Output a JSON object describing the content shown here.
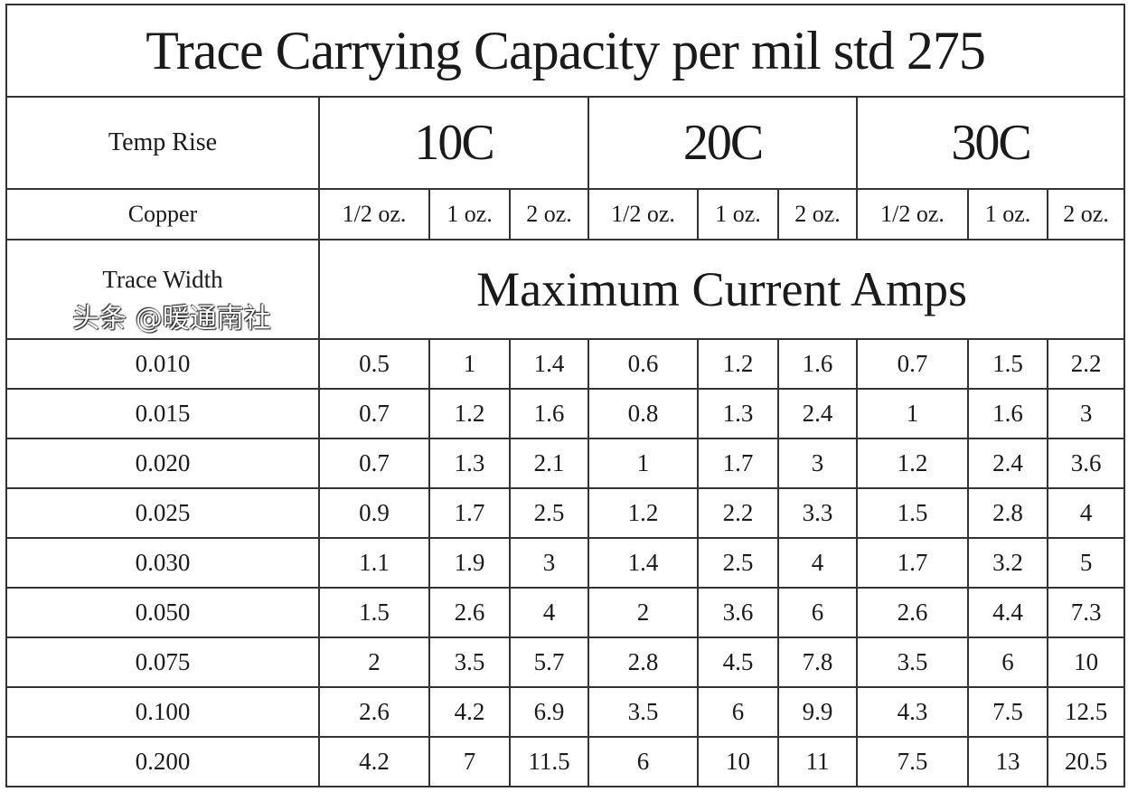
{
  "title": "Trace Carrying Capacity per mil std 275",
  "temp_rise_label": "Temp Rise",
  "temps": [
    "10C",
    "20C",
    "30C"
  ],
  "copper_label": "Copper",
  "copper": [
    "1/2 oz.",
    "1 oz.",
    "2 oz.",
    "1/2 oz.",
    "1 oz.",
    "2 oz.",
    "1/2 oz.",
    "1 oz.",
    "2 oz."
  ],
  "trace_width_label": "Trace Width",
  "max_current_label": "Maximum Current Amps",
  "rows": [
    {
      "w": "0.010",
      "v": [
        "0.5",
        "1",
        "1.4",
        "0.6",
        "1.2",
        "1.6",
        "0.7",
        "1.5",
        "2.2"
      ]
    },
    {
      "w": "0.015",
      "v": [
        "0.7",
        "1.2",
        "1.6",
        "0.8",
        "1.3",
        "2.4",
        "1",
        "1.6",
        "3"
      ]
    },
    {
      "w": "0.020",
      "v": [
        "0.7",
        "1.3",
        "2.1",
        "1",
        "1.7",
        "3",
        "1.2",
        "2.4",
        "3.6"
      ]
    },
    {
      "w": "0.025",
      "v": [
        "0.9",
        "1.7",
        "2.5",
        "1.2",
        "2.2",
        "3.3",
        "1.5",
        "2.8",
        "4"
      ]
    },
    {
      "w": "0.030",
      "v": [
        "1.1",
        "1.9",
        "3",
        "1.4",
        "2.5",
        "4",
        "1.7",
        "3.2",
        "5"
      ]
    },
    {
      "w": "0.050",
      "v": [
        "1.5",
        "2.6",
        "4",
        "2",
        "3.6",
        "6",
        "2.6",
        "4.4",
        "7.3"
      ]
    },
    {
      "w": "0.075",
      "v": [
        "2",
        "3.5",
        "5.7",
        "2.8",
        "4.5",
        "7.8",
        "3.5",
        "6",
        "10"
      ]
    },
    {
      "w": "0.100",
      "v": [
        "2.6",
        "4.2",
        "6.9",
        "3.5",
        "6",
        "9.9",
        "4.3",
        "7.5",
        "12.5"
      ]
    },
    {
      "w": "0.200",
      "v": [
        "4.2",
        "7",
        "11.5",
        "6",
        "10",
        "11",
        "7.5",
        "13",
        "20.5"
      ]
    }
  ],
  "watermark": "头条 @暖通南社"
}
